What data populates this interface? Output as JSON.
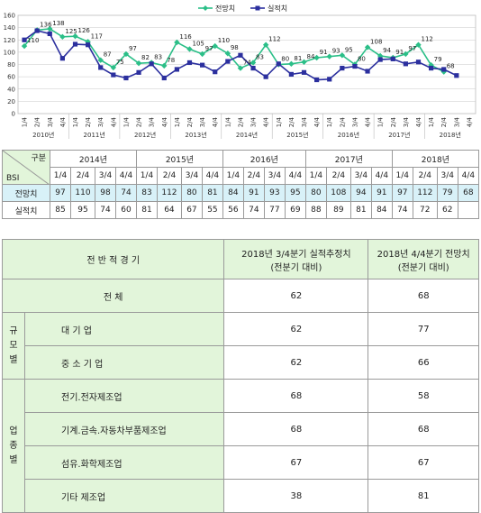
{
  "chart_data": {
    "type": "line",
    "ylim": [
      0,
      160
    ],
    "yticks": [
      0,
      20,
      40,
      60,
      80,
      100,
      120,
      140,
      160
    ],
    "quarter_labels": [
      "1/4",
      "2/4",
      "3/4",
      "4/4"
    ],
    "years": [
      "2010년",
      "2011년",
      "2012년",
      "2013년",
      "2014년",
      "2015년",
      "2016년",
      "2017년",
      "2018년"
    ],
    "series": [
      {
        "name": "전망치",
        "color": "#2bbf88",
        "values": [
          110,
          136,
          138,
          125,
          126,
          117,
          87,
          75,
          97,
          82,
          83,
          78,
          116,
          105,
          97,
          110,
          98,
          74,
          83,
          112,
          80,
          81,
          84,
          91,
          93,
          95,
          80,
          108,
          94,
          91,
          97,
          112,
          79,
          68
        ]
      },
      {
        "name": "실적치",
        "color": "#2b2f9e",
        "values": [
          120,
          135,
          130,
          90,
          113,
          112,
          75,
          63,
          58,
          67,
          81,
          58,
          72,
          83,
          79,
          68,
          85,
          95,
          74,
          60,
          81,
          64,
          67,
          55,
          56,
          74,
          77,
          69,
          88,
          89,
          81,
          84,
          74,
          72,
          62
        ]
      }
    ],
    "forecast_labels": [
      "110",
      "136",
      "138",
      "125",
      "126",
      "117",
      "87",
      "75",
      "97",
      "82",
      "83",
      "78",
      "116",
      "105",
      "97",
      "110",
      "98",
      "74",
      "83",
      "112",
      "80",
      "81",
      "84",
      "91",
      "93",
      "95",
      "80",
      "108",
      "94",
      "91",
      "97",
      "112",
      "79",
      "68"
    ]
  },
  "bsi_table": {
    "corner_top": "구분",
    "corner_bottom": "BSI",
    "years": [
      "2014년",
      "2015년",
      "2016년",
      "2017년",
      "2018년"
    ],
    "quarters": [
      "1/4",
      "2/4",
      "3/4",
      "4/4"
    ],
    "forecast_label": "전망치",
    "actual_label": "실적치",
    "forecast": [
      "97",
      "110",
      "98",
      "74",
      "83",
      "112",
      "80",
      "81",
      "84",
      "91",
      "93",
      "95",
      "80",
      "108",
      "94",
      "91",
      "97",
      "112",
      "79",
      "68"
    ],
    "actual": [
      "85",
      "95",
      "74",
      "60",
      "81",
      "64",
      "67",
      "55",
      "56",
      "74",
      "77",
      "69",
      "88",
      "89",
      "81",
      "84",
      "74",
      "72",
      "62",
      ""
    ]
  },
  "env_table": {
    "header_col1": "전 반 적 경 기",
    "header_col2": "2018년 3/4분기 실적추정치\n(전분기 대비)",
    "header_col3": "2018년 4/4분기 전망치\n(전분기 대비)",
    "total": {
      "label": "전 체",
      "v1": "62",
      "v2": "68"
    },
    "scale_group": "규\n모\n별",
    "scale_rows": [
      {
        "label": "대 기 업",
        "v1": "62",
        "v2": "77"
      },
      {
        "label": "중 소 기 업",
        "v1": "62",
        "v2": "66"
      }
    ],
    "industry_group": "업\n종\n별",
    "industry_rows": [
      {
        "label": "전기.전자제조업",
        "v1": "68",
        "v2": "58"
      },
      {
        "label": "기계.금속.자동차부품제조업",
        "v1": "68",
        "v2": "68"
      },
      {
        "label": "섬유.화학제조업",
        "v1": "67",
        "v2": "67"
      },
      {
        "label": "기타 제조업",
        "v1": "38",
        "v2": "81"
      }
    ]
  }
}
